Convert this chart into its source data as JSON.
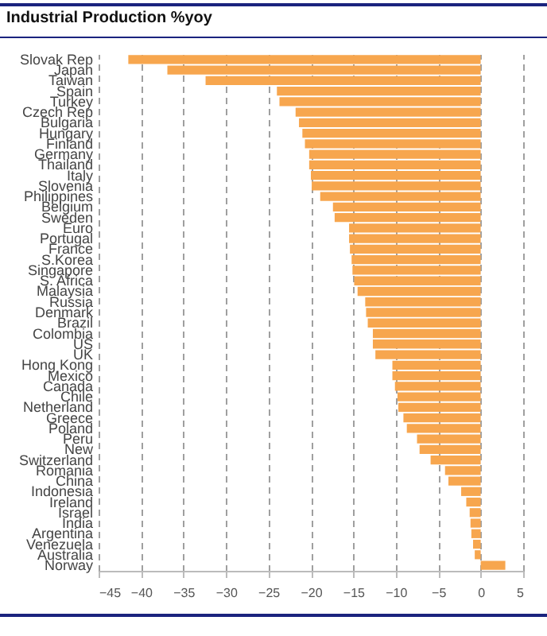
{
  "chart_data": {
    "type": "bar",
    "orientation": "horizontal",
    "title": "Industrial Production %yoy",
    "categories": [
      "Slovak Rep",
      "Japan",
      "Taiwan",
      "Spain",
      "Turkey",
      "Czech Rep",
      "Bulgaria",
      "Hungary",
      "Finland",
      "Germany",
      "Thailand",
      "Italy",
      "Slovenia",
      "Philippines",
      "Belgium",
      "Sweden",
      "Euro",
      "Portugal",
      "France",
      "S.Korea",
      "Singapore",
      "S. Africa",
      "Malaysia",
      "Russia",
      "Denmark",
      "Brazil",
      "Colombia",
      "US",
      "UK",
      "Hong Kong",
      "Mexico",
      "Canada",
      "Chile",
      "Netherland",
      "Greece",
      "Poland",
      "Peru",
      "New",
      "Switzerland",
      "Romania",
      "China",
      "Indonesia",
      "Ireland",
      "Israel",
      "India",
      "Argentina",
      "Venezuela",
      "Australia",
      "Norway"
    ],
    "values": [
      -41.5,
      -36.9,
      -32.4,
      -24.0,
      -23.7,
      -21.8,
      -21.4,
      -21.0,
      -20.7,
      -20.2,
      -20.2,
      -20.0,
      -19.9,
      -18.9,
      -17.4,
      -17.2,
      -15.5,
      -15.5,
      -15.4,
      -15.2,
      -15.1,
      -14.9,
      -14.5,
      -13.6,
      -13.5,
      -13.3,
      -12.7,
      -12.7,
      -12.4,
      -10.4,
      -10.4,
      -10.1,
      -9.8,
      -9.7,
      -9.1,
      -8.7,
      -7.5,
      -7.2,
      -5.9,
      -4.2,
      -3.8,
      -2.3,
      -1.7,
      -1.3,
      -1.2,
      -1.1,
      -0.9,
      -0.7,
      2.9
    ],
    "color": "#f7a64e",
    "xlim": [
      -45,
      5
    ],
    "xticks": [
      -45,
      -40,
      -35,
      -30,
      -25,
      -20,
      -15,
      -10,
      -5,
      0,
      5
    ],
    "grid": "x"
  }
}
